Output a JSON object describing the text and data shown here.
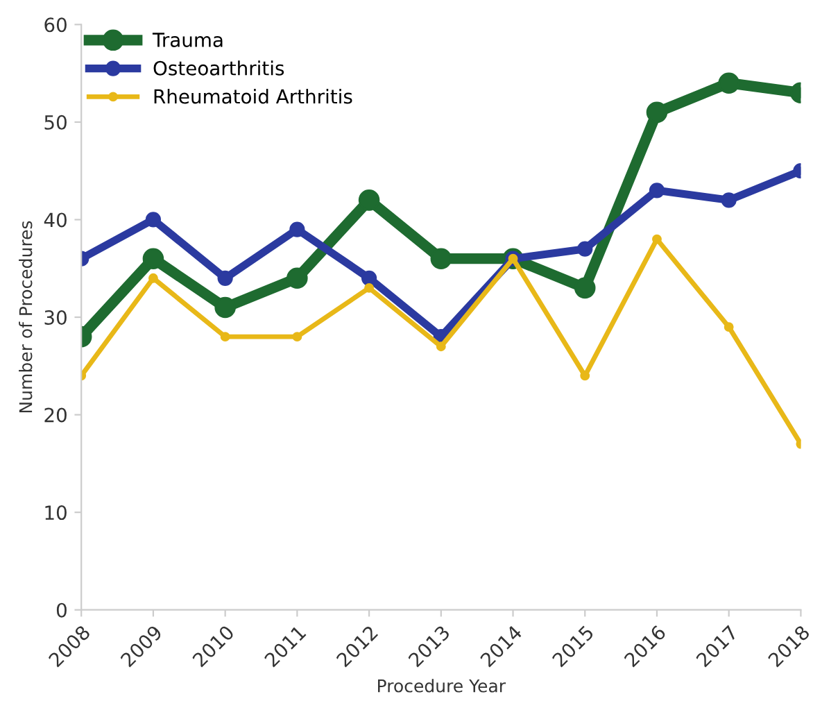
{
  "chart_data": {
    "type": "line",
    "xlabel": "Procedure Year",
    "ylabel": "Number of Procedures",
    "categories": [
      "2008",
      "2009",
      "2010",
      "2011",
      "2012",
      "2013",
      "2014",
      "2015",
      "2016",
      "2017",
      "2018"
    ],
    "series": [
      {
        "name": "Trauma",
        "color": "#1e6b30",
        "values": [
          28,
          36,
          31,
          34,
          42,
          36,
          36,
          33,
          51,
          54,
          53
        ]
      },
      {
        "name": "Osteoarthritis",
        "color": "#2b3aa0",
        "values": [
          36,
          40,
          34,
          39,
          34,
          28,
          36,
          37,
          43,
          42,
          45
        ]
      },
      {
        "name": "Rheumatoid Arthritis",
        "color": "#e8b818",
        "values": [
          24,
          34,
          28,
          28,
          33,
          27,
          36,
          24,
          38,
          29,
          17
        ]
      }
    ],
    "ylim": [
      0,
      60
    ],
    "yticks": [
      0,
      10,
      20,
      30,
      40,
      50,
      60
    ],
    "grid": false,
    "legend": "top left",
    "marker": "circle",
    "line_style": "solid"
  }
}
